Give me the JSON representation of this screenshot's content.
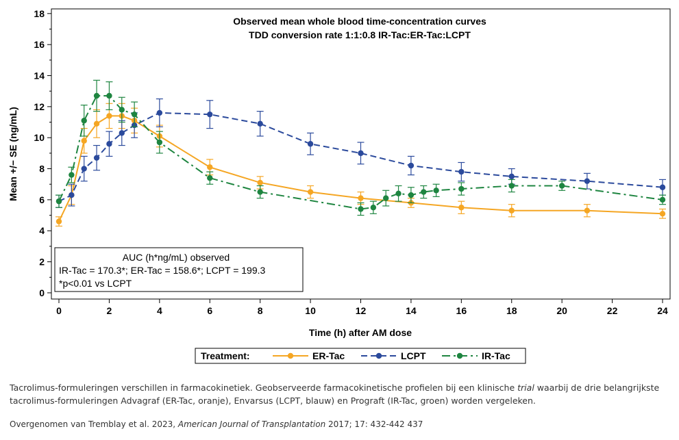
{
  "chart_data": {
    "type": "line",
    "title": "Observed mean whole blood time-concentration curves",
    "subtitle": "TDD conversion rate 1:1:0.8 IR-Tac:ER-Tac:LCPT",
    "xlabel": "Time (h) after AM dose",
    "ylabel": "Mean +/− SE (ng/mL)",
    "xlim": [
      -0.3,
      24.3
    ],
    "ylim": [
      -0.4,
      18.3
    ],
    "xticks": [
      "0",
      "2",
      "4",
      "6",
      "8",
      "10",
      "12",
      "14",
      "16",
      "18",
      "20",
      "22",
      "24"
    ],
    "yticks": [
      "0",
      "2",
      "4",
      "6",
      "8",
      "10",
      "12",
      "14",
      "16",
      "18"
    ],
    "legend_placement": "bottom",
    "legend_title": "Treatment:",
    "series": [
      {
        "name": "ER-Tac",
        "color": "#f5a623",
        "dash": "solid",
        "x": [
          0,
          0.5,
          1,
          1.5,
          2,
          2.5,
          3,
          4,
          6,
          8,
          10,
          12,
          14,
          16,
          18,
          21,
          24
        ],
        "y": [
          4.6,
          6.3,
          9.8,
          10.9,
          11.4,
          11.4,
          11.1,
          10.1,
          8.1,
          7.1,
          6.5,
          6.1,
          5.8,
          5.5,
          5.3,
          5.3,
          5.1
        ],
        "se": [
          0.3,
          0.6,
          0.8,
          0.9,
          0.8,
          0.8,
          0.8,
          0.7,
          0.5,
          0.4,
          0.4,
          0.4,
          0.3,
          0.4,
          0.4,
          0.4,
          0.3
        ]
      },
      {
        "name": "LCPT",
        "color": "#2b4a9c",
        "dash": "dash",
        "x": [
          0,
          0.5,
          1,
          1.5,
          2,
          2.5,
          3,
          4,
          6,
          8,
          10,
          12,
          14,
          16,
          18,
          21,
          24
        ],
        "y": [
          5.9,
          6.3,
          8.0,
          8.7,
          9.6,
          10.3,
          10.8,
          11.6,
          11.5,
          10.9,
          9.6,
          9.0,
          8.2,
          7.8,
          7.5,
          7.2,
          6.8
        ],
        "se": [
          0.4,
          0.7,
          0.8,
          0.8,
          0.8,
          0.8,
          0.8,
          0.9,
          0.9,
          0.8,
          0.7,
          0.7,
          0.6,
          0.6,
          0.5,
          0.5,
          0.5
        ]
      },
      {
        "name": "IR-Tac",
        "color": "#1e8540",
        "dash": "dashdot",
        "x": [
          0,
          0.5,
          1,
          1.5,
          2,
          2.5,
          3,
          4,
          6,
          8,
          12,
          12.5,
          13,
          13.5,
          14,
          14.5,
          15,
          16,
          18,
          20,
          24
        ],
        "y": [
          5.9,
          7.6,
          11.1,
          12.7,
          12.7,
          11.8,
          11.5,
          9.7,
          7.4,
          6.5,
          5.4,
          5.5,
          6.1,
          6.4,
          6.3,
          6.5,
          6.6,
          6.7,
          6.9,
          6.9,
          6.0
        ],
        "se": [
          0.4,
          0.5,
          1.0,
          1.0,
          0.9,
          0.8,
          0.8,
          0.7,
          0.4,
          0.4,
          0.4,
          0.4,
          0.5,
          0.5,
          0.5,
          0.4,
          0.4,
          0.4,
          0.4,
          0.3,
          0.3
        ]
      }
    ],
    "annotation": {
      "line1": "AUC (h*ng/mL) observed",
      "line2": "IR-Tac = 170.3*; ER-Tac = 158.6*; LCPT = 199.3",
      "line3": "*p<0.01 vs LCPT"
    }
  },
  "caption": {
    "text_before": "Tacrolimus-formuleringen verschillen in farmacokinetiek. Geobserveerde farmacokinetische profielen bij een klinische ",
    "text_italic": "trial",
    "text_after": " waarbij de drie belangrijkste tacrolimus-formuleringen Advagraf (ER-Tac, oranje), Envarsus (LCPT, blauw) en Prograft (IR-Tac, groen) worden vergeleken."
  },
  "source": {
    "text_before": "Overgenomen van Tremblay et al. 2023, ",
    "journal": "American Journal of Transplantation",
    "text_after": " 2017; 17: 432-442 437"
  }
}
